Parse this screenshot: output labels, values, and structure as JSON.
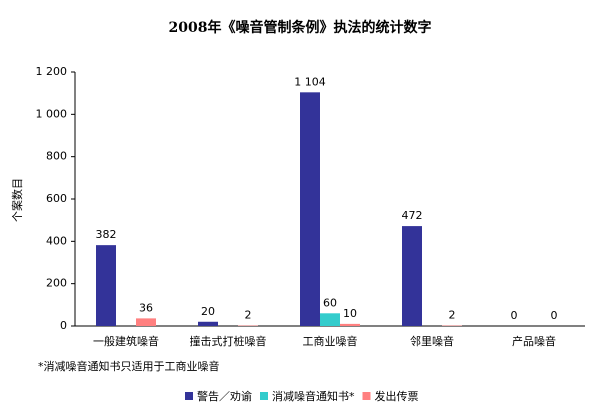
{
  "chart_data": {
    "type": "bar",
    "title": "2008年《噪音管制条例》执法的统计数字",
    "y_label": "个案数目",
    "note": "*消减噪音通知书只适用于工商业噪音",
    "categories": [
      "一般建筑噪音",
      "撞击式打桩噪音",
      "工商业噪音",
      "邻里噪音",
      "产品噪音"
    ],
    "series": [
      {
        "name": "警告／劝谕",
        "color": "#333399",
        "values": [
          382,
          20,
          1104,
          472,
          0
        ],
        "value_labels": [
          "382",
          "20",
          "1 104",
          "472",
          "0"
        ]
      },
      {
        "name": "消减噪音通知书*",
        "color": "#33cccc",
        "values": [
          null,
          null,
          60,
          null,
          null
        ]
      },
      {
        "name": "发出传票",
        "color": "#ff8080",
        "values": [
          36,
          2,
          10,
          2,
          0
        ]
      }
    ],
    "ylim": [
      0,
      1200
    ],
    "yticks": [
      0,
      200,
      400,
      600,
      800,
      {
        "value": 1000,
        "label": "1 000"
      },
      {
        "value": 1200,
        "label": "1 200"
      }
    ],
    "grid": false
  }
}
